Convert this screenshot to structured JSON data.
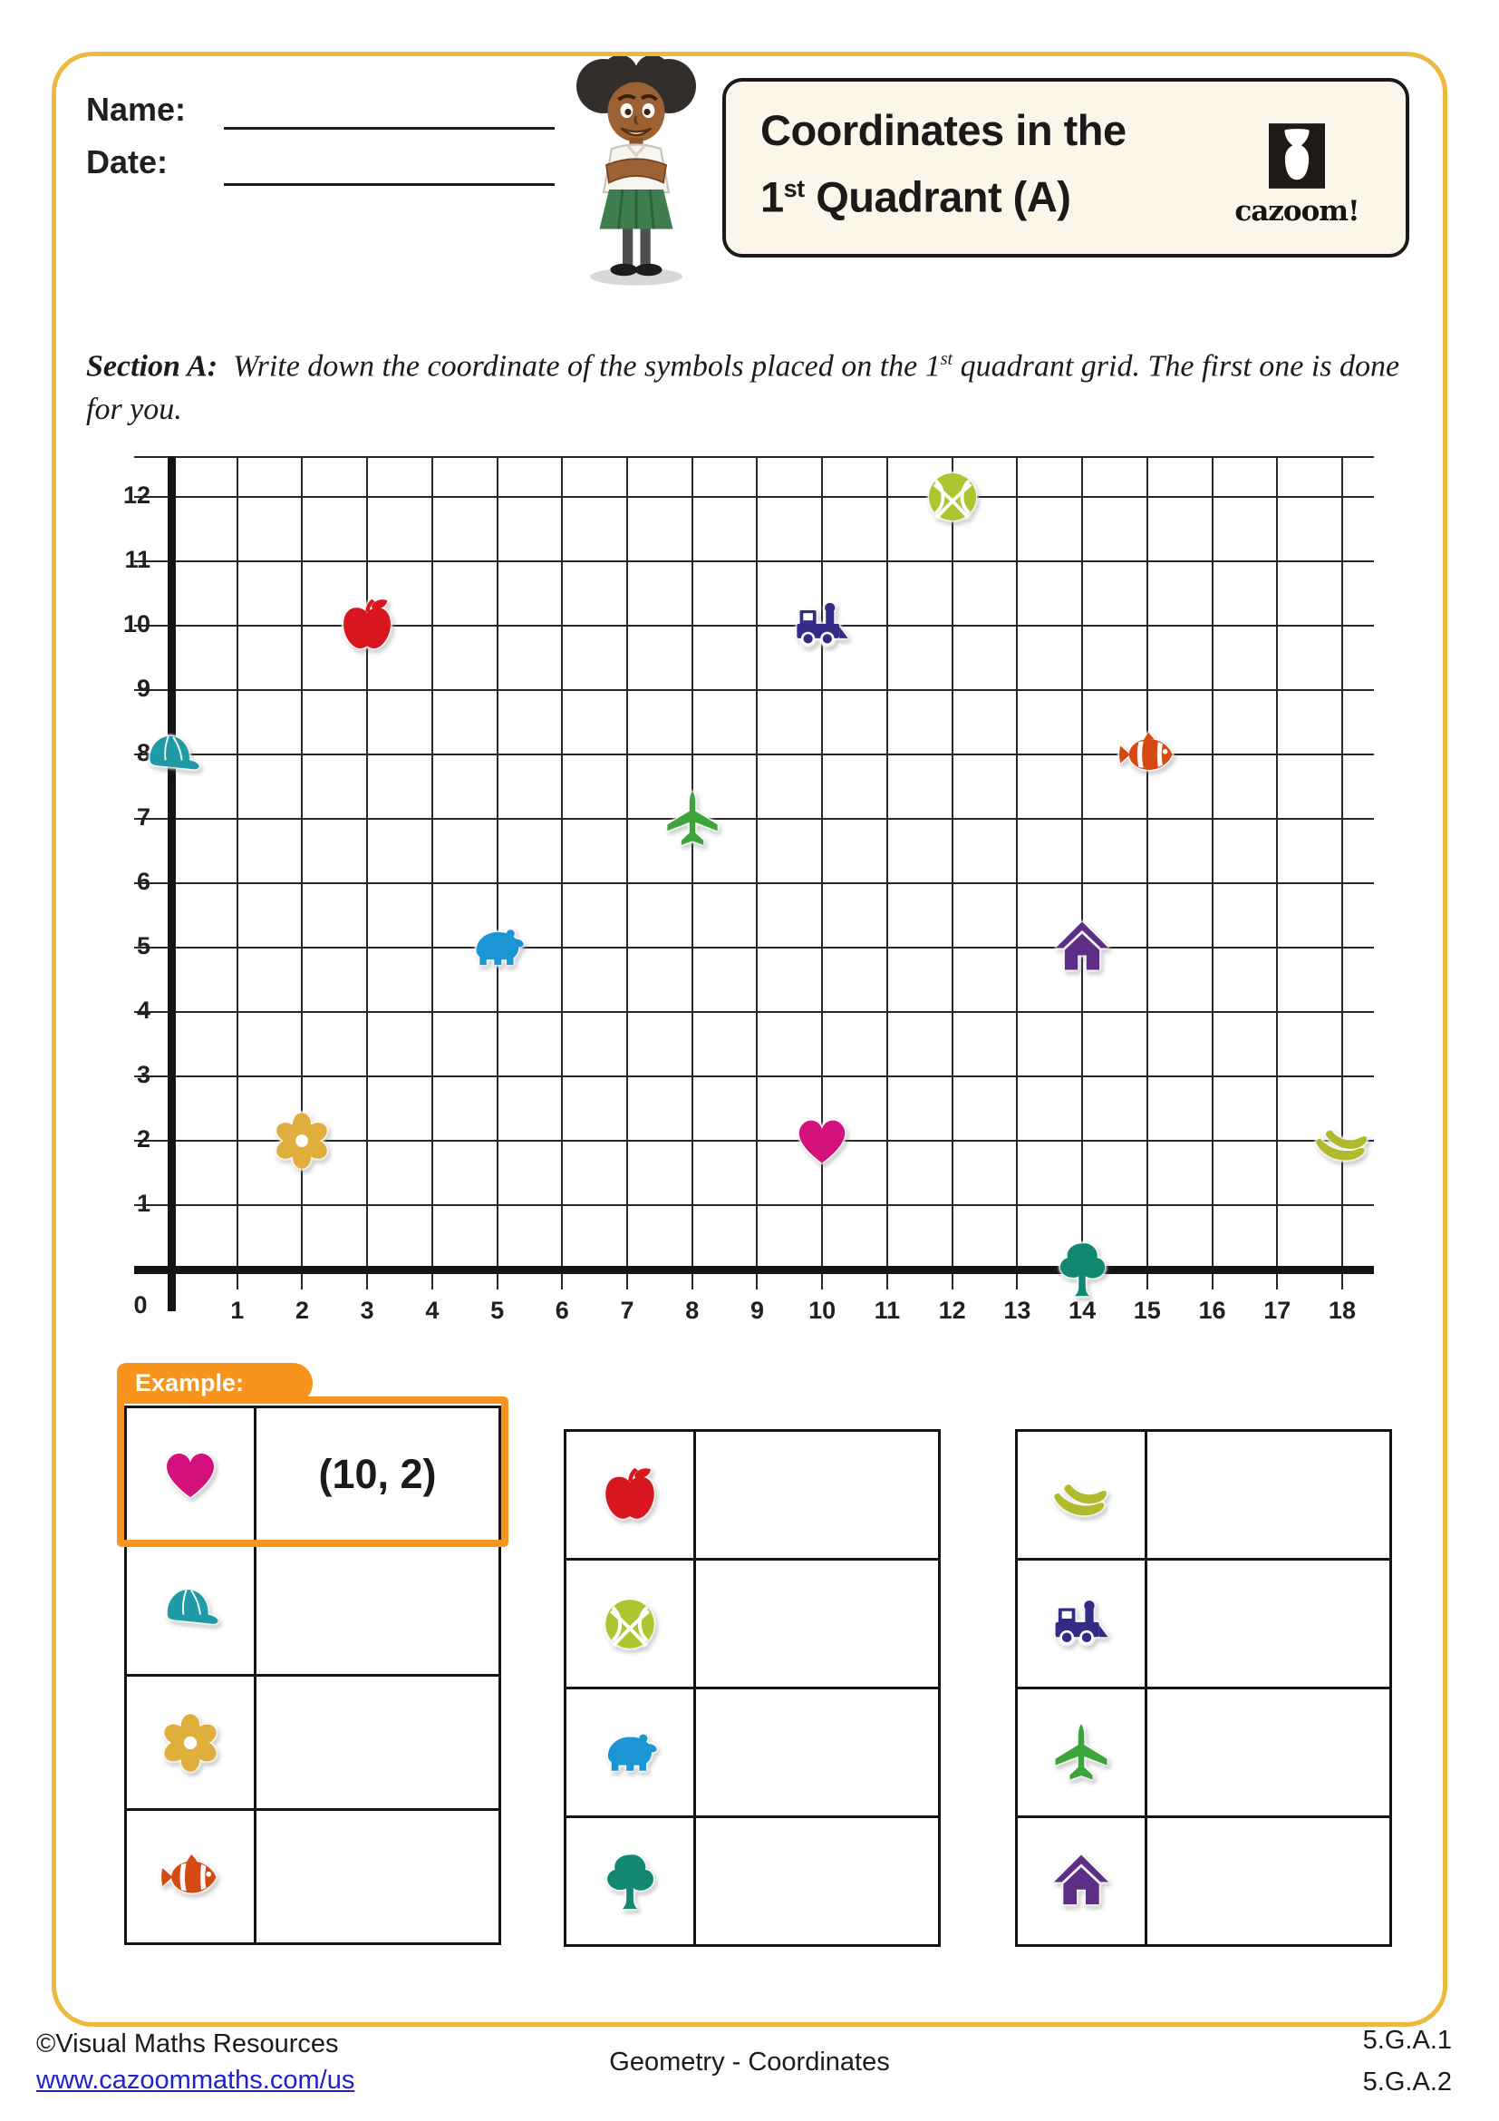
{
  "page": {
    "frame_color": "#ECB83E",
    "accent_orange": "#F7941E"
  },
  "header": {
    "name_label": "Name:",
    "date_label": "Date:",
    "title_line1": "Coordinates in the",
    "title_l2_num": "1",
    "title_l2_sup": "st",
    "title_l2_rest": " Quadrant (A)",
    "logo_text": "cazoom!"
  },
  "section": {
    "label": "Section A:",
    "text_pre": "Write down the coordinate of the symbols placed on the 1",
    "text_sup": "st",
    "text_post": " quadrant grid. The first one is done for you."
  },
  "grid": {
    "origin_label": "0",
    "x_ticks": [
      "1",
      "2",
      "3",
      "4",
      "5",
      "6",
      "7",
      "8",
      "9",
      "10",
      "11",
      "12",
      "13",
      "14",
      "15",
      "16",
      "17",
      "18"
    ],
    "y_ticks": [
      "1",
      "2",
      "3",
      "4",
      "5",
      "6",
      "7",
      "8",
      "9",
      "10",
      "11",
      "12"
    ],
    "points": [
      {
        "icon": "basketball",
        "x": 12,
        "y": 12
      },
      {
        "icon": "apple",
        "x": 3,
        "y": 10
      },
      {
        "icon": "train",
        "x": 10,
        "y": 10
      },
      {
        "icon": "cap",
        "x": 0,
        "y": 8
      },
      {
        "icon": "fish",
        "x": 15,
        "y": 8
      },
      {
        "icon": "plane",
        "x": 8,
        "y": 7
      },
      {
        "icon": "bear",
        "x": 5,
        "y": 5
      },
      {
        "icon": "house",
        "x": 14,
        "y": 5
      },
      {
        "icon": "flower",
        "x": 2,
        "y": 2
      },
      {
        "icon": "heart",
        "x": 10,
        "y": 2
      },
      {
        "icon": "banana",
        "x": 18,
        "y": 2
      },
      {
        "icon": "tree",
        "x": 14,
        "y": 0
      }
    ]
  },
  "icon_colors": {
    "heart": "#D3117D",
    "cap": "#1F9BA8",
    "flower": "#DFAE3D",
    "fish": "#D44A12",
    "apple": "#D8161F",
    "basketball": "#AEC431",
    "bear": "#1C95D4",
    "tree": "#128873",
    "banana": "#B2B92F",
    "train": "#332C87",
    "plane": "#3DA43C",
    "house": "#5C2E85"
  },
  "example": {
    "label": "Example:"
  },
  "tables": [
    {
      "rows": [
        {
          "icon": "heart",
          "answer": "(10, 2)",
          "example": true
        },
        {
          "icon": "cap",
          "answer": ""
        },
        {
          "icon": "flower",
          "answer": ""
        },
        {
          "icon": "fish",
          "answer": ""
        }
      ]
    },
    {
      "rows": [
        {
          "icon": "apple",
          "answer": ""
        },
        {
          "icon": "basketball",
          "answer": ""
        },
        {
          "icon": "bear",
          "answer": ""
        },
        {
          "icon": "tree",
          "answer": ""
        }
      ]
    },
    {
      "rows": [
        {
          "icon": "banana",
          "answer": ""
        },
        {
          "icon": "train",
          "answer": ""
        },
        {
          "icon": "plane",
          "answer": ""
        },
        {
          "icon": "house",
          "answer": ""
        }
      ]
    }
  ],
  "footer": {
    "copyright": "©Visual Maths Resources",
    "url": "www.cazoommaths.com/us",
    "center": "Geometry - Coordinates",
    "standards": [
      "5.G.A.1",
      "5.G.A.2"
    ]
  },
  "chart_data": {
    "type": "scatter",
    "title": "Coordinates in the 1st Quadrant (A)",
    "xlabel": "",
    "ylabel": "",
    "x_range": [
      0,
      18
    ],
    "y_range": [
      0,
      12
    ],
    "grid": true,
    "points": [
      {
        "label": "basketball",
        "x": 12,
        "y": 12
      },
      {
        "label": "apple",
        "x": 3,
        "y": 10
      },
      {
        "label": "train",
        "x": 10,
        "y": 10
      },
      {
        "label": "cap",
        "x": 0,
        "y": 8
      },
      {
        "label": "fish",
        "x": 15,
        "y": 8
      },
      {
        "label": "plane",
        "x": 8,
        "y": 7
      },
      {
        "label": "bear",
        "x": 5,
        "y": 5
      },
      {
        "label": "house",
        "x": 14,
        "y": 5
      },
      {
        "label": "flower",
        "x": 2,
        "y": 2
      },
      {
        "label": "heart",
        "x": 10,
        "y": 2
      },
      {
        "label": "banana",
        "x": 18,
        "y": 2
      },
      {
        "label": "tree",
        "x": 14,
        "y": 0
      }
    ]
  }
}
